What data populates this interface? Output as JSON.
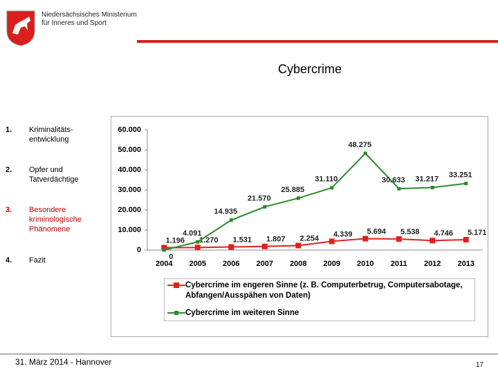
{
  "header": {
    "ministry": [
      "Niedersächsisches Ministerium",
      "für Inneres und Sport"
    ],
    "title": "Cybercrime"
  },
  "nav": [
    {
      "number": "1.",
      "label": "Kriminalitäts-\nentwicklung"
    },
    {
      "number": "2.",
      "label": "Opfer und Tatverdächtige"
    },
    {
      "number": "3.",
      "label": "Besondere kriminologische Phänomene"
    },
    {
      "number": "4.",
      "label": "Fazit"
    }
  ],
  "chart_data": {
    "type": "line",
    "categories": [
      "2004",
      "2005",
      "2006",
      "2007",
      "2008",
      "2009",
      "2010",
      "2011",
      "2012",
      "2013"
    ],
    "series": [
      {
        "name": "Cybercrime im engeren Sinne (z. B. Computerbetrug, Computersabotage, Abfangen/Ausspähen von Daten)",
        "color": "#e3201b",
        "values": [
          1196,
          1270,
          1531,
          1807,
          2254,
          4339,
          5694,
          5538,
          4746,
          5171
        ],
        "value_labels": [
          "1.196",
          "1.270",
          "1.531",
          "1.807",
          "2.254",
          "4.339",
          "5.694",
          "5.538",
          "4.746",
          "5.171"
        ]
      },
      {
        "name": "Cybercrime im weiteren Sinne",
        "color": "#2b8a2b",
        "values": [
          0,
          4091,
          14935,
          21570,
          25885,
          31110,
          48275,
          30633,
          31217,
          33251
        ],
        "value_labels": [
          "0",
          "4.091",
          "14.935",
          "21.570",
          "25.885",
          "31.110",
          "48.275",
          "30.633",
          "31.217",
          "33.251"
        ]
      }
    ],
    "ylim": [
      0,
      60000
    ],
    "yticks": [
      0,
      {
        "value": 10000,
        "label": "10.000"
      },
      {
        "value": 20000,
        "label": "20.000"
      },
      {
        "value": 30000,
        "label": "30.000"
      },
      {
        "value": 40000,
        "label": "40.000"
      },
      {
        "value": 50000,
        "label": "50.000"
      },
      {
        "value": 60000,
        "label": "60.000"
      }
    ],
    "grid": false
  },
  "footer": {
    "date": "31. März 2014 - Hannover",
    "page": "17"
  }
}
